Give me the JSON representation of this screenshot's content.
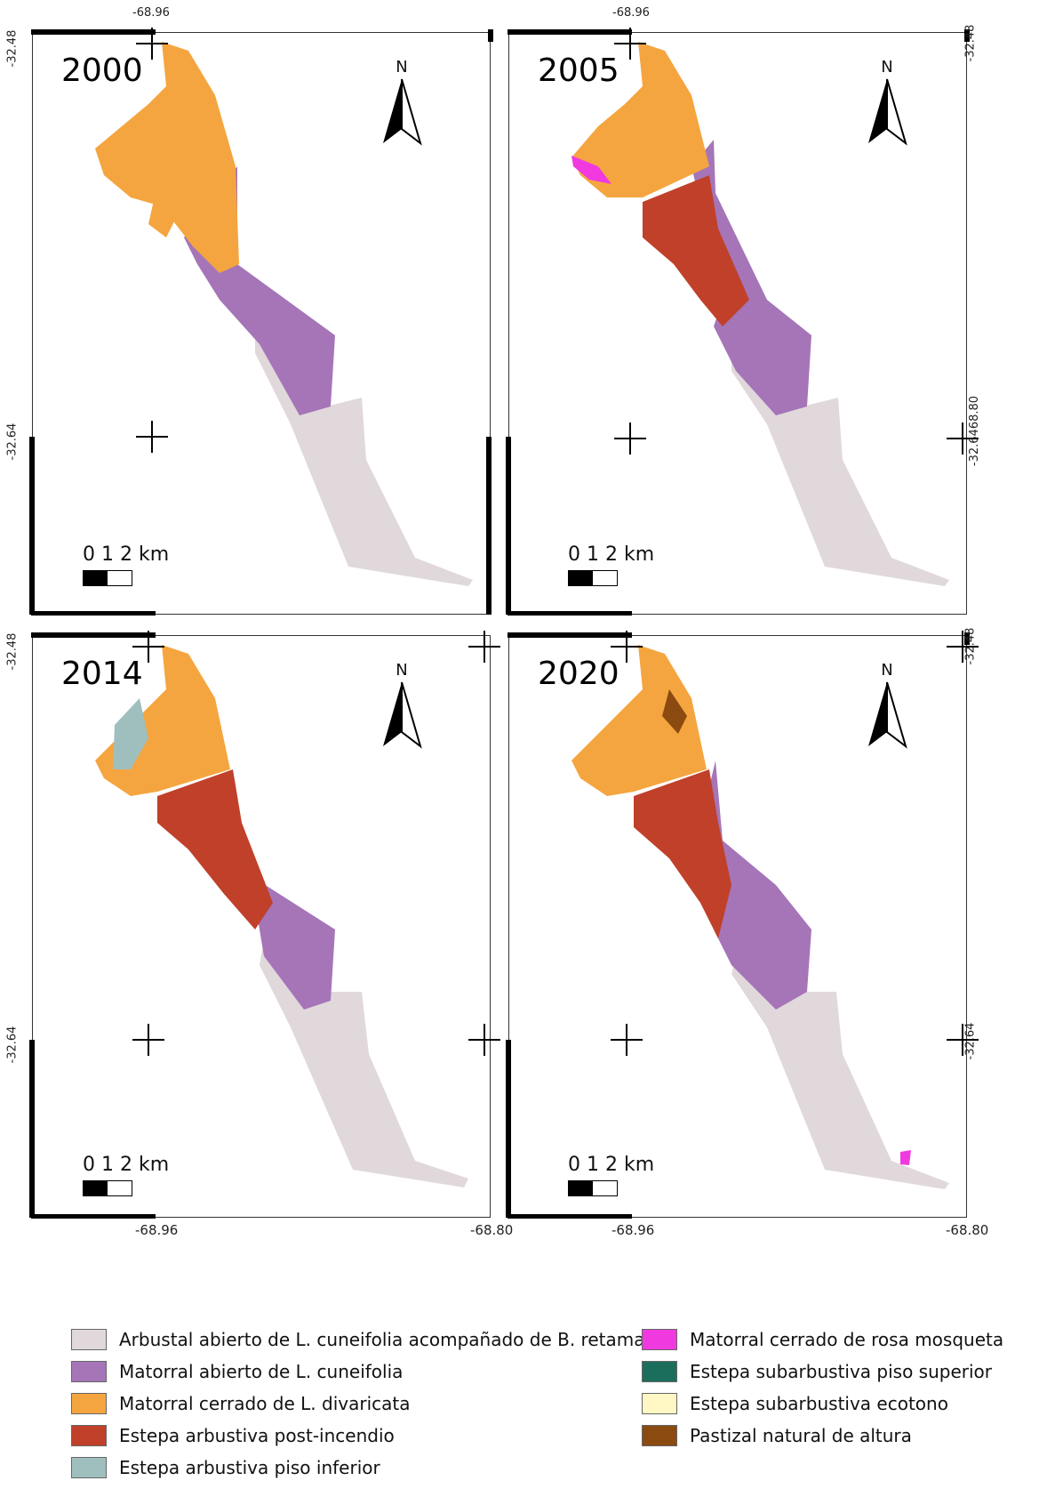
{
  "panels": [
    {
      "year": "2000"
    },
    {
      "year": "2005"
    },
    {
      "year": "2014"
    },
    {
      "year": "2020"
    }
  ],
  "north_label": "N",
  "scale_bar": {
    "label": "0  1  2 km"
  },
  "coords": {
    "lon_left": "-68.96",
    "lon_right": "-68.80",
    "lat_top": "-32.48",
    "lat_bottom": "-32.64",
    "overlap_label": "-32.6468.80"
  },
  "legend": {
    "items": [
      {
        "label": "Arbustal abierto de L. cuneifolia acompañado de B. retama",
        "color": "#e0d8da"
      },
      {
        "label": "Matorral abierto de L. cuneifolia",
        "color": "#a575b8"
      },
      {
        "label": "Matorral cerrado de L. divaricata",
        "color": "#f5a53f"
      },
      {
        "label": "Estepa arbustiva post-incendio",
        "color": "#c0402a"
      },
      {
        "label": "Estepa arbustiva piso inferior",
        "color": "#9fbfbf"
      },
      {
        "label": "Matorral cerrado de rosa mosqueta",
        "color": "#f03ae0"
      },
      {
        "label": "Estepa subarbustiva piso superior",
        "color": "#1c6e5c"
      },
      {
        "label": "Estepa subarbustiva ecotono",
        "color": "#fff8c4"
      },
      {
        "label": "Pastizal natural de altura",
        "color": "#8a4a10"
      }
    ]
  }
}
